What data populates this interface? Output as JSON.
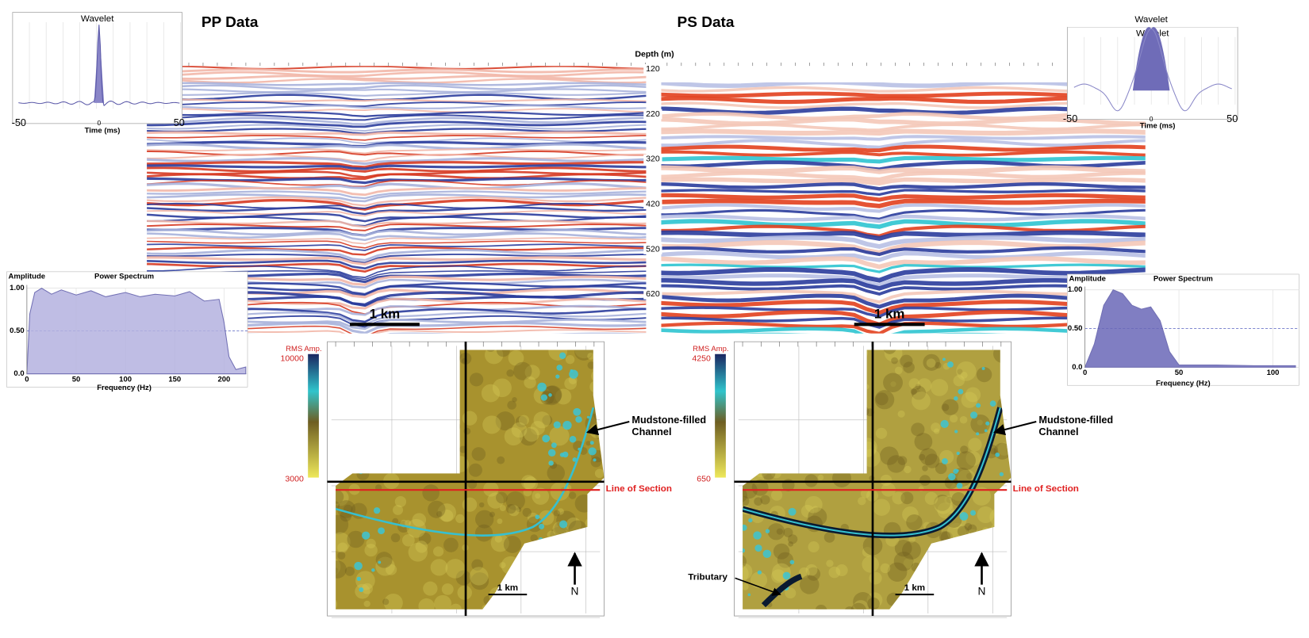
{
  "pp": {
    "title": "PP Data",
    "depth_label": "Depth (m)",
    "depth_ticks": [
      120,
      220,
      320,
      420,
      520,
      620
    ],
    "scale_bar": "1 km",
    "wavelet": {
      "title": "Wavelet",
      "xlabel": "Time (ms)",
      "xticks": [
        -50,
        0,
        50
      ]
    },
    "spectrum": {
      "title": "Power Spectrum",
      "ylabel": "Amplitude",
      "xlabel": "Frequency (Hz)",
      "xticks": [
        0,
        50,
        100,
        150,
        200
      ],
      "yticks": [
        {
          "value": 1,
          "label": "1.00"
        },
        {
          "value": 0.5,
          "label": "0.50"
        },
        {
          "value": 0,
          "label": "0.0"
        }
      ]
    },
    "map": {
      "colorbar_label": "RMS Amp.",
      "colorbar_max": 10000,
      "colorbar_min": 3000,
      "channel_label": [
        "Mudstone-filled",
        "Channel"
      ],
      "section_label": "Line of Section",
      "scale_bar": "1 km",
      "north": "N"
    }
  },
  "ps": {
    "title": "PS Data",
    "scale_bar": "1 km",
    "wavelet": {
      "title": "Wavelet",
      "xlabel": "Time (ms)",
      "xticks": [
        -50,
        0,
        50
      ]
    },
    "spectrum": {
      "title": "Power Spectrum",
      "ylabel": "Amplitude",
      "xlabel": "Frequency (Hz)",
      "xticks": [
        0,
        50,
        100
      ],
      "yticks": [
        {
          "value": 1,
          "label": "1.00"
        },
        {
          "value": 0.5,
          "label": "0.50"
        },
        {
          "value": 0,
          "label": "0.0"
        }
      ]
    },
    "map": {
      "colorbar_label": "RMS Amp.",
      "colorbar_max": 4250,
      "colorbar_min": 650,
      "channel_label": [
        "Mudstone-filled",
        "Channel"
      ],
      "section_label": "Line of Section",
      "tributary_label": "Tributary",
      "scale_bar": "1 km",
      "north": "N"
    }
  }
}
